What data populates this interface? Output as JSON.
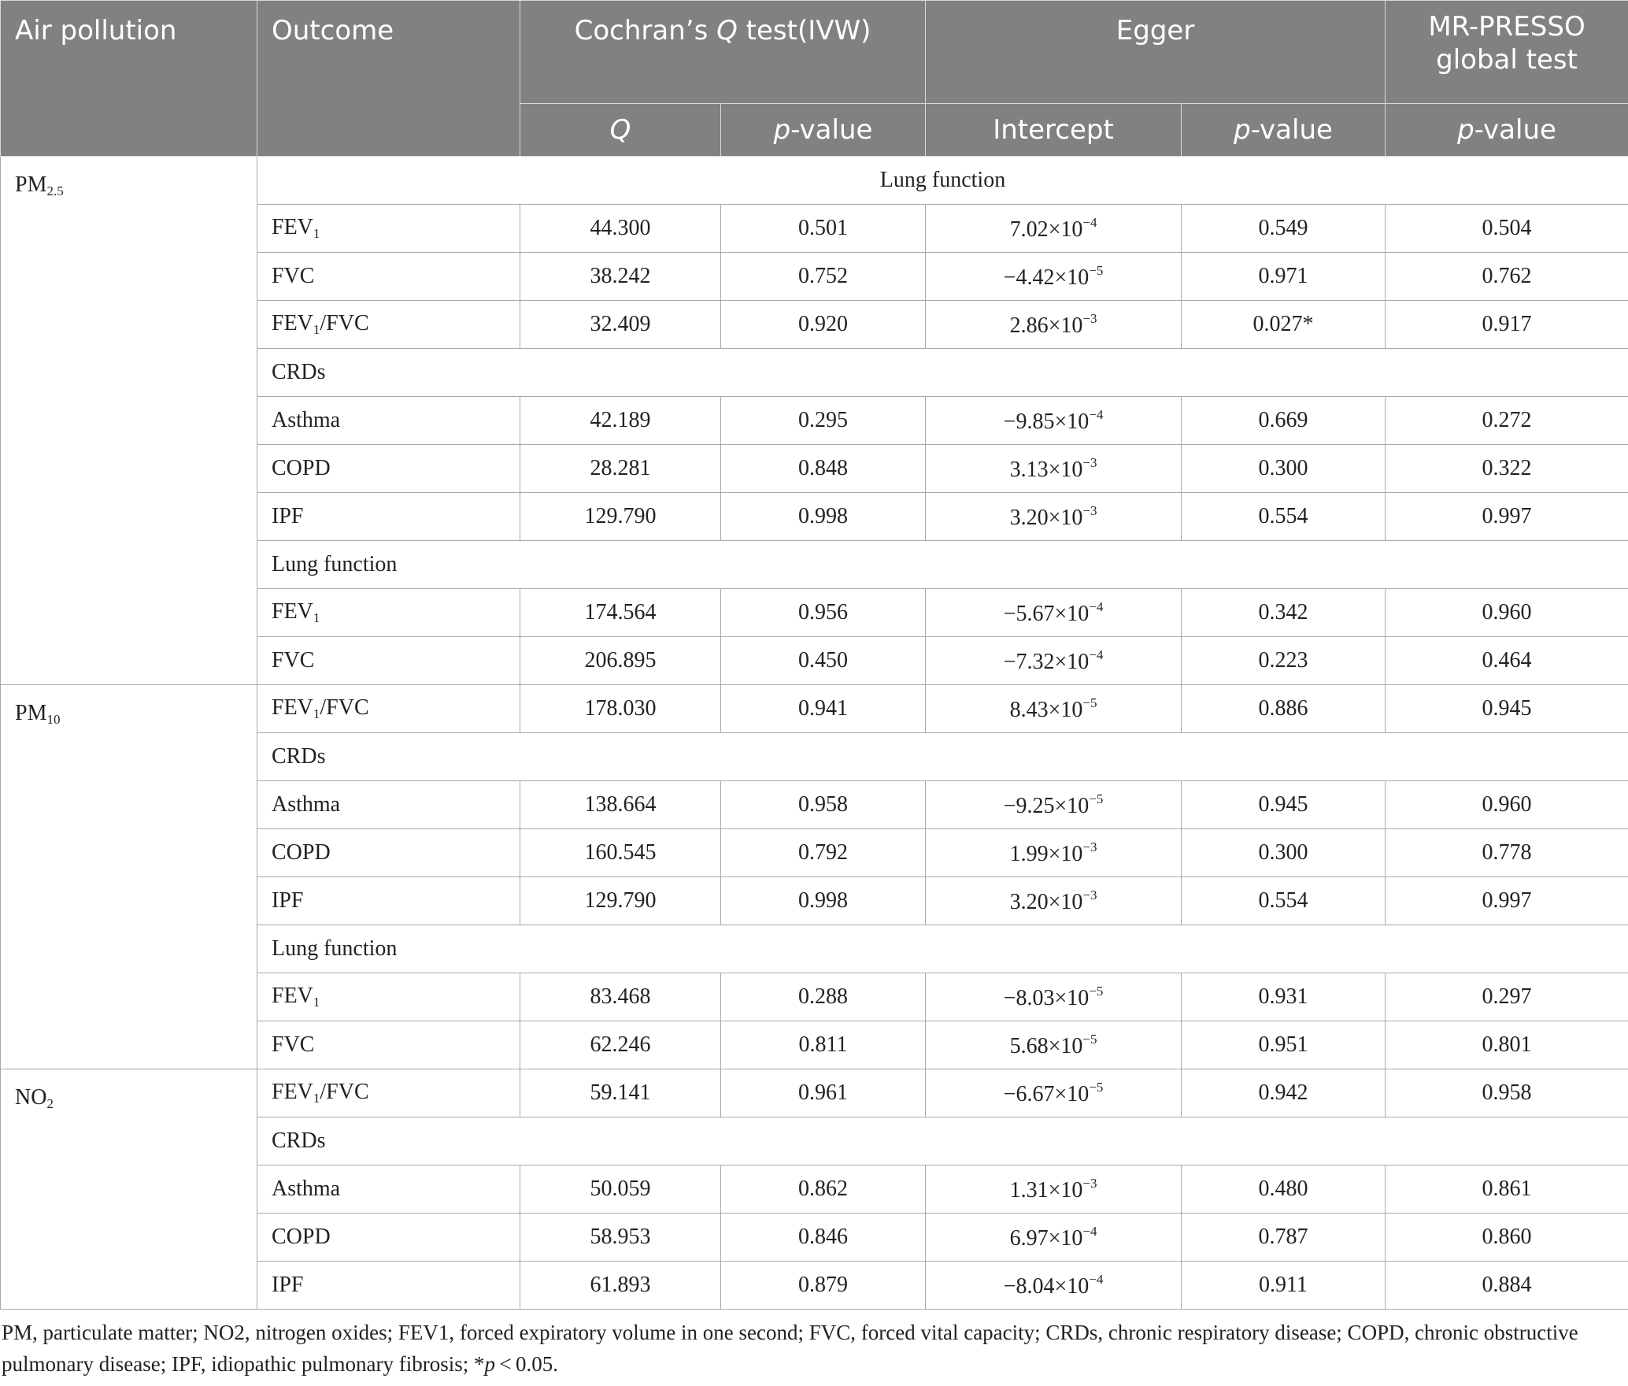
{
  "header": {
    "air_pollution": "Air pollution",
    "outcome": "Outcome",
    "cochran_prefix": "Cochran’s ",
    "cochran_q": "Q",
    "cochran_suffix": " test(IVW)",
    "egger": "Egger",
    "mrpresso_line1": "MR-PRESSO",
    "mrpresso_line2": "global test",
    "q": "Q",
    "p_italic": "p",
    "p_rest": "-value",
    "intercept": "Intercept"
  },
  "pollutants": {
    "pm25": {
      "base": "PM",
      "sub": "2.5"
    },
    "pm10": {
      "base": "PM",
      "sub": "10"
    },
    "no2": {
      "base": "NO",
      "sub": "2"
    }
  },
  "rows": [
    {
      "type": "sub",
      "label": "Lung function"
    },
    {
      "type": "data",
      "base": "FEV",
      "sub": "1",
      "suffix": "",
      "q": "44.300",
      "pq": "0.501",
      "int_m": "7.02",
      "int_e": "−4",
      "pe": "0.549",
      "pmr": "0.504"
    },
    {
      "type": "data",
      "base": "FVC",
      "sub": "",
      "suffix": "",
      "q": "38.242",
      "pq": "0.752",
      "int_m": "−4.42",
      "int_e": "−5",
      "pe": "0.971",
      "pmr": "0.762"
    },
    {
      "type": "data",
      "base": "FEV",
      "sub": "1",
      "suffix": "/FVC",
      "q": "32.409",
      "pq": "0.920",
      "int_m": "2.86",
      "int_e": "−3",
      "pe": "0.027*",
      "pmr": "0.917"
    },
    {
      "type": "sub",
      "label": "CRDs"
    },
    {
      "type": "data",
      "base": "Asthma",
      "sub": "",
      "suffix": "",
      "q": "42.189",
      "pq": "0.295",
      "int_m": "−9.85",
      "int_e": "−4",
      "pe": "0.669",
      "pmr": "0.272"
    },
    {
      "type": "data",
      "base": "COPD",
      "sub": "",
      "suffix": "",
      "q": "28.281",
      "pq": "0.848",
      "int_m": "3.13",
      "int_e": "−3",
      "pe": "0.300",
      "pmr": "0.322"
    },
    {
      "type": "data",
      "base": "IPF",
      "sub": "",
      "suffix": "",
      "q": "129.790",
      "pq": "0.998",
      "int_m": "3.20",
      "int_e": "−3",
      "pe": "0.554",
      "pmr": "0.997"
    },
    {
      "type": "sub",
      "label": "Lung function"
    },
    {
      "type": "data",
      "base": "FEV",
      "sub": "1",
      "suffix": "",
      "q": "174.564",
      "pq": "0.956",
      "int_m": "−5.67",
      "int_e": "−4",
      "pe": "0.342",
      "pmr": "0.960"
    },
    {
      "type": "data",
      "base": "FVC",
      "sub": "",
      "suffix": "",
      "q": "206.895",
      "pq": "0.450",
      "int_m": "−7.32",
      "int_e": "−4",
      "pe": "0.223",
      "pmr": "0.464"
    },
    {
      "type": "data",
      "base": "FEV",
      "sub": "1",
      "suffix": "/FVC",
      "q": "178.030",
      "pq": "0.941",
      "int_m": "8.43",
      "int_e": "−5",
      "pe": "0.886",
      "pmr": "0.945"
    },
    {
      "type": "sub",
      "label": "CRDs"
    },
    {
      "type": "data",
      "base": "Asthma",
      "sub": "",
      "suffix": "",
      "q": "138.664",
      "pq": "0.958",
      "int_m": "−9.25",
      "int_e": "−5",
      "pe": "0.945",
      "pmr": "0.960"
    },
    {
      "type": "data",
      "base": "COPD",
      "sub": "",
      "suffix": "",
      "q": "160.545",
      "pq": "0.792",
      "int_m": "1.99",
      "int_e": "−3",
      "pe": "0.300",
      "pmr": "0.778"
    },
    {
      "type": "data",
      "base": "IPF",
      "sub": "",
      "suffix": "",
      "q": "129.790",
      "pq": "0.998",
      "int_m": "3.20",
      "int_e": "−3",
      "pe": "0.554",
      "pmr": "0.997"
    },
    {
      "type": "sub",
      "label": "Lung function"
    },
    {
      "type": "data",
      "base": "FEV",
      "sub": "1",
      "suffix": "",
      "q": "83.468",
      "pq": "0.288",
      "int_m": "−8.03",
      "int_e": "−5",
      "pe": "0.931",
      "pmr": "0.297"
    },
    {
      "type": "data",
      "base": "FVC",
      "sub": "",
      "suffix": "",
      "q": "62.246",
      "pq": "0.811",
      "int_m": "5.68",
      "int_e": "−5",
      "pe": "0.951",
      "pmr": "0.801"
    },
    {
      "type": "data",
      "base": "FEV",
      "sub": "1",
      "suffix": "/FVC",
      "q": "59.141",
      "pq": "0.961",
      "int_m": "−6.67",
      "int_e": "−5",
      "pe": "0.942",
      "pmr": "0.958"
    },
    {
      "type": "sub",
      "label": "CRDs"
    },
    {
      "type": "data",
      "base": "Asthma",
      "sub": "",
      "suffix": "",
      "q": "50.059",
      "pq": "0.862",
      "int_m": "1.31",
      "int_e": "−3",
      "pe": "0.480",
      "pmr": "0.861"
    },
    {
      "type": "data",
      "base": "COPD",
      "sub": "",
      "suffix": "",
      "q": "58.953",
      "pq": "0.846",
      "int_m": "6.97",
      "int_e": "−4",
      "pe": "0.787",
      "pmr": "0.860"
    },
    {
      "type": "data",
      "base": "IPF",
      "sub": "",
      "suffix": "",
      "q": "61.893",
      "pq": "0.879",
      "int_m": "−8.04",
      "int_e": "−4",
      "pe": "0.911",
      "pmr": "0.884"
    }
  ],
  "times_sign": "×",
  "ten": "10",
  "footnote": {
    "main": "PM, particulate matter; NO2, nitrogen oxides; FEV1, forced expiratory volume in one second; FVC, forced vital capacity; CRDs, chronic respiratory disease; COPD, chronic obstructive pulmonary disease; IPF, idiopathic pulmonary fibrosis; *",
    "p": "p",
    "tail": " < 0.05."
  },
  "colors": {
    "header_bg": "#808281",
    "header_text": "#ffffff",
    "border": "#a9a9a9"
  }
}
